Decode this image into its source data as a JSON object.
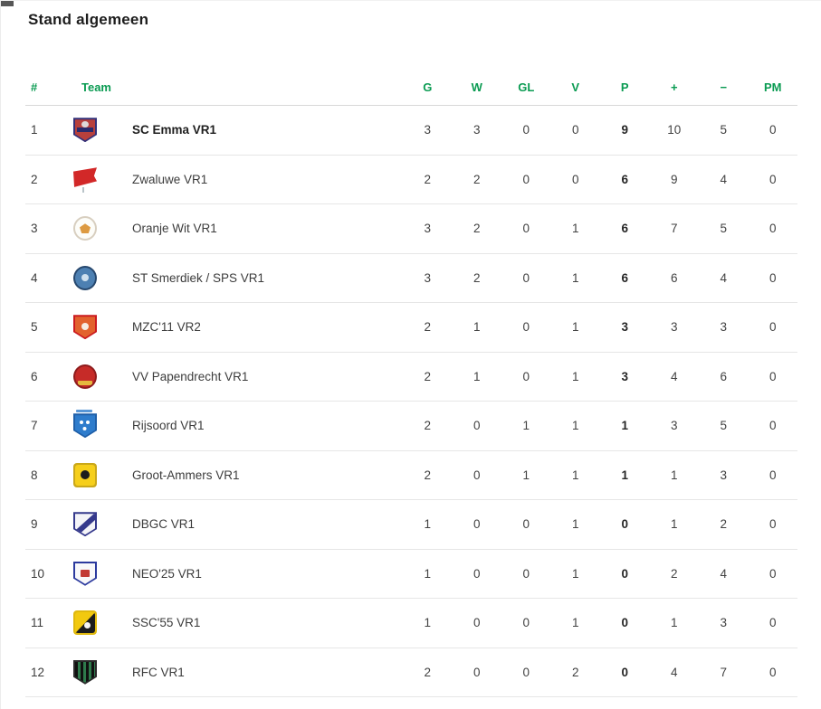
{
  "page": {
    "title": "Stand algemeen"
  },
  "colors": {
    "accent_green": "#0a9b52"
  },
  "table": {
    "columns": [
      {
        "key": "pos",
        "label": "#"
      },
      {
        "key": "team",
        "label": "Team"
      },
      {
        "key": "g",
        "label": "G"
      },
      {
        "key": "w",
        "label": "W"
      },
      {
        "key": "gl",
        "label": "GL"
      },
      {
        "key": "v",
        "label": "V"
      },
      {
        "key": "p",
        "label": "P"
      },
      {
        "key": "plus",
        "label": "+"
      },
      {
        "key": "minus",
        "label": "−"
      },
      {
        "key": "pm",
        "label": "PM"
      }
    ],
    "rows": [
      {
        "pos": 1,
        "team": "SC Emma VR1",
        "bold": true,
        "g": 3,
        "w": 3,
        "gl": 0,
        "v": 0,
        "p": 9,
        "plus": 10,
        "minus": 5,
        "pm": 0,
        "logo": {
          "shape": "shield",
          "bg": "#b8403c",
          "border": "#343178",
          "accents": [
            {
              "type": "dot-top",
              "color": "#ded8d8"
            },
            {
              "type": "band",
              "color": "#2b2a6b"
            }
          ]
        }
      },
      {
        "pos": 2,
        "team": "Zwaluwe VR1",
        "bold": false,
        "g": 2,
        "w": 2,
        "gl": 0,
        "v": 0,
        "p": 6,
        "plus": 9,
        "minus": 4,
        "pm": 0,
        "logo": {
          "shape": "flag",
          "bg": "#d22828",
          "accents": [
            {
              "type": "pole",
              "color": "#b9c4c9"
            }
          ]
        }
      },
      {
        "pos": 3,
        "team": "Oranje Wit VR1",
        "bold": false,
        "g": 3,
        "w": 2,
        "gl": 0,
        "v": 1,
        "p": 6,
        "plus": 7,
        "minus": 5,
        "pm": 0,
        "logo": {
          "shape": "circle",
          "bg": "#fdfdf9",
          "border": "#d8cfc0",
          "accents": [
            {
              "type": "pentagon",
              "color": "#dd9a41"
            }
          ]
        }
      },
      {
        "pos": 4,
        "team": "ST Smerdiek / SPS VR1",
        "bold": false,
        "g": 3,
        "w": 2,
        "gl": 0,
        "v": 1,
        "p": 6,
        "plus": 6,
        "minus": 4,
        "pm": 0,
        "logo": {
          "shape": "circle",
          "bg": "#4d80b2",
          "border": "#27486e",
          "accents": [
            {
              "type": "dot",
              "color": "#cfe0ee"
            }
          ]
        }
      },
      {
        "pos": 5,
        "team": "MZC'11 VR2",
        "bold": false,
        "g": 2,
        "w": 1,
        "gl": 0,
        "v": 1,
        "p": 3,
        "plus": 3,
        "minus": 3,
        "pm": 0,
        "logo": {
          "shape": "shield",
          "bg": "#e2622d",
          "border": "#cb1a1f",
          "accents": [
            {
              "type": "dot",
              "color": "#f6ece2"
            }
          ]
        }
      },
      {
        "pos": 6,
        "team": "VV Papendrecht VR1",
        "bold": false,
        "g": 2,
        "w": 1,
        "gl": 0,
        "v": 1,
        "p": 3,
        "plus": 4,
        "minus": 6,
        "pm": 0,
        "logo": {
          "shape": "circle",
          "bg": "#c62b28",
          "border": "#8e1c1d",
          "accents": [
            {
              "type": "band-bottom",
              "color": "#e5b93e"
            }
          ]
        }
      },
      {
        "pos": 7,
        "team": "Rijsoord VR1",
        "bold": false,
        "g": 2,
        "w": 0,
        "gl": 1,
        "v": 1,
        "p": 1,
        "plus": 3,
        "minus": 5,
        "pm": 0,
        "logo": {
          "shape": "shield",
          "bg": "#2e7ccc",
          "border": "#1f5fa8",
          "accents": [
            {
              "type": "label-top",
              "color": "#2e7ccc"
            },
            {
              "type": "dots3",
              "color": "#ffffff"
            }
          ]
        }
      },
      {
        "pos": 8,
        "team": "Groot-Ammers VR1",
        "bold": false,
        "g": 2,
        "w": 0,
        "gl": 1,
        "v": 1,
        "p": 1,
        "plus": 1,
        "minus": 3,
        "pm": 0,
        "logo": {
          "shape": "square",
          "bg": "#f6cf1b",
          "border": "#caa81a",
          "accents": [
            {
              "type": "sun",
              "color": "#1d1d1d"
            }
          ]
        }
      },
      {
        "pos": 9,
        "team": "DBGC VR1",
        "bold": false,
        "g": 1,
        "w": 0,
        "gl": 0,
        "v": 1,
        "p": 0,
        "plus": 1,
        "minus": 2,
        "pm": 0,
        "logo": {
          "shape": "shield",
          "bg": "#f4f4f8",
          "border": "#35398c",
          "accents": [
            {
              "type": "diag",
              "color": "#35398c"
            }
          ]
        }
      },
      {
        "pos": 10,
        "team": "NEO'25 VR1",
        "bold": false,
        "g": 1,
        "w": 0,
        "gl": 0,
        "v": 1,
        "p": 0,
        "plus": 2,
        "minus": 4,
        "pm": 0,
        "logo": {
          "shape": "shield",
          "bg": "#f8f8fa",
          "border": "#2c3a9e",
          "accents": [
            {
              "type": "box",
              "color": "#c23a35"
            }
          ]
        }
      },
      {
        "pos": 11,
        "team": "SSC'55 VR1",
        "bold": false,
        "g": 1,
        "w": 0,
        "gl": 0,
        "v": 1,
        "p": 0,
        "plus": 1,
        "minus": 3,
        "pm": 0,
        "logo": {
          "shape": "square",
          "bg": "#f2c90f",
          "border": "#e0b90e",
          "accents": [
            {
              "type": "half",
              "color": "#1c1c1c"
            },
            {
              "type": "dot-low",
              "color": "#f5f5f5"
            }
          ]
        }
      },
      {
        "pos": 12,
        "team": "RFC VR1",
        "bold": false,
        "g": 2,
        "w": 0,
        "gl": 0,
        "v": 2,
        "p": 0,
        "plus": 4,
        "minus": 7,
        "pm": 0,
        "logo": {
          "shape": "shield",
          "bg": "#101010",
          "border": "#2a2a2a",
          "accents": [
            {
              "type": "stripes",
              "color": "#2e7a4b"
            }
          ]
        }
      }
    ]
  }
}
